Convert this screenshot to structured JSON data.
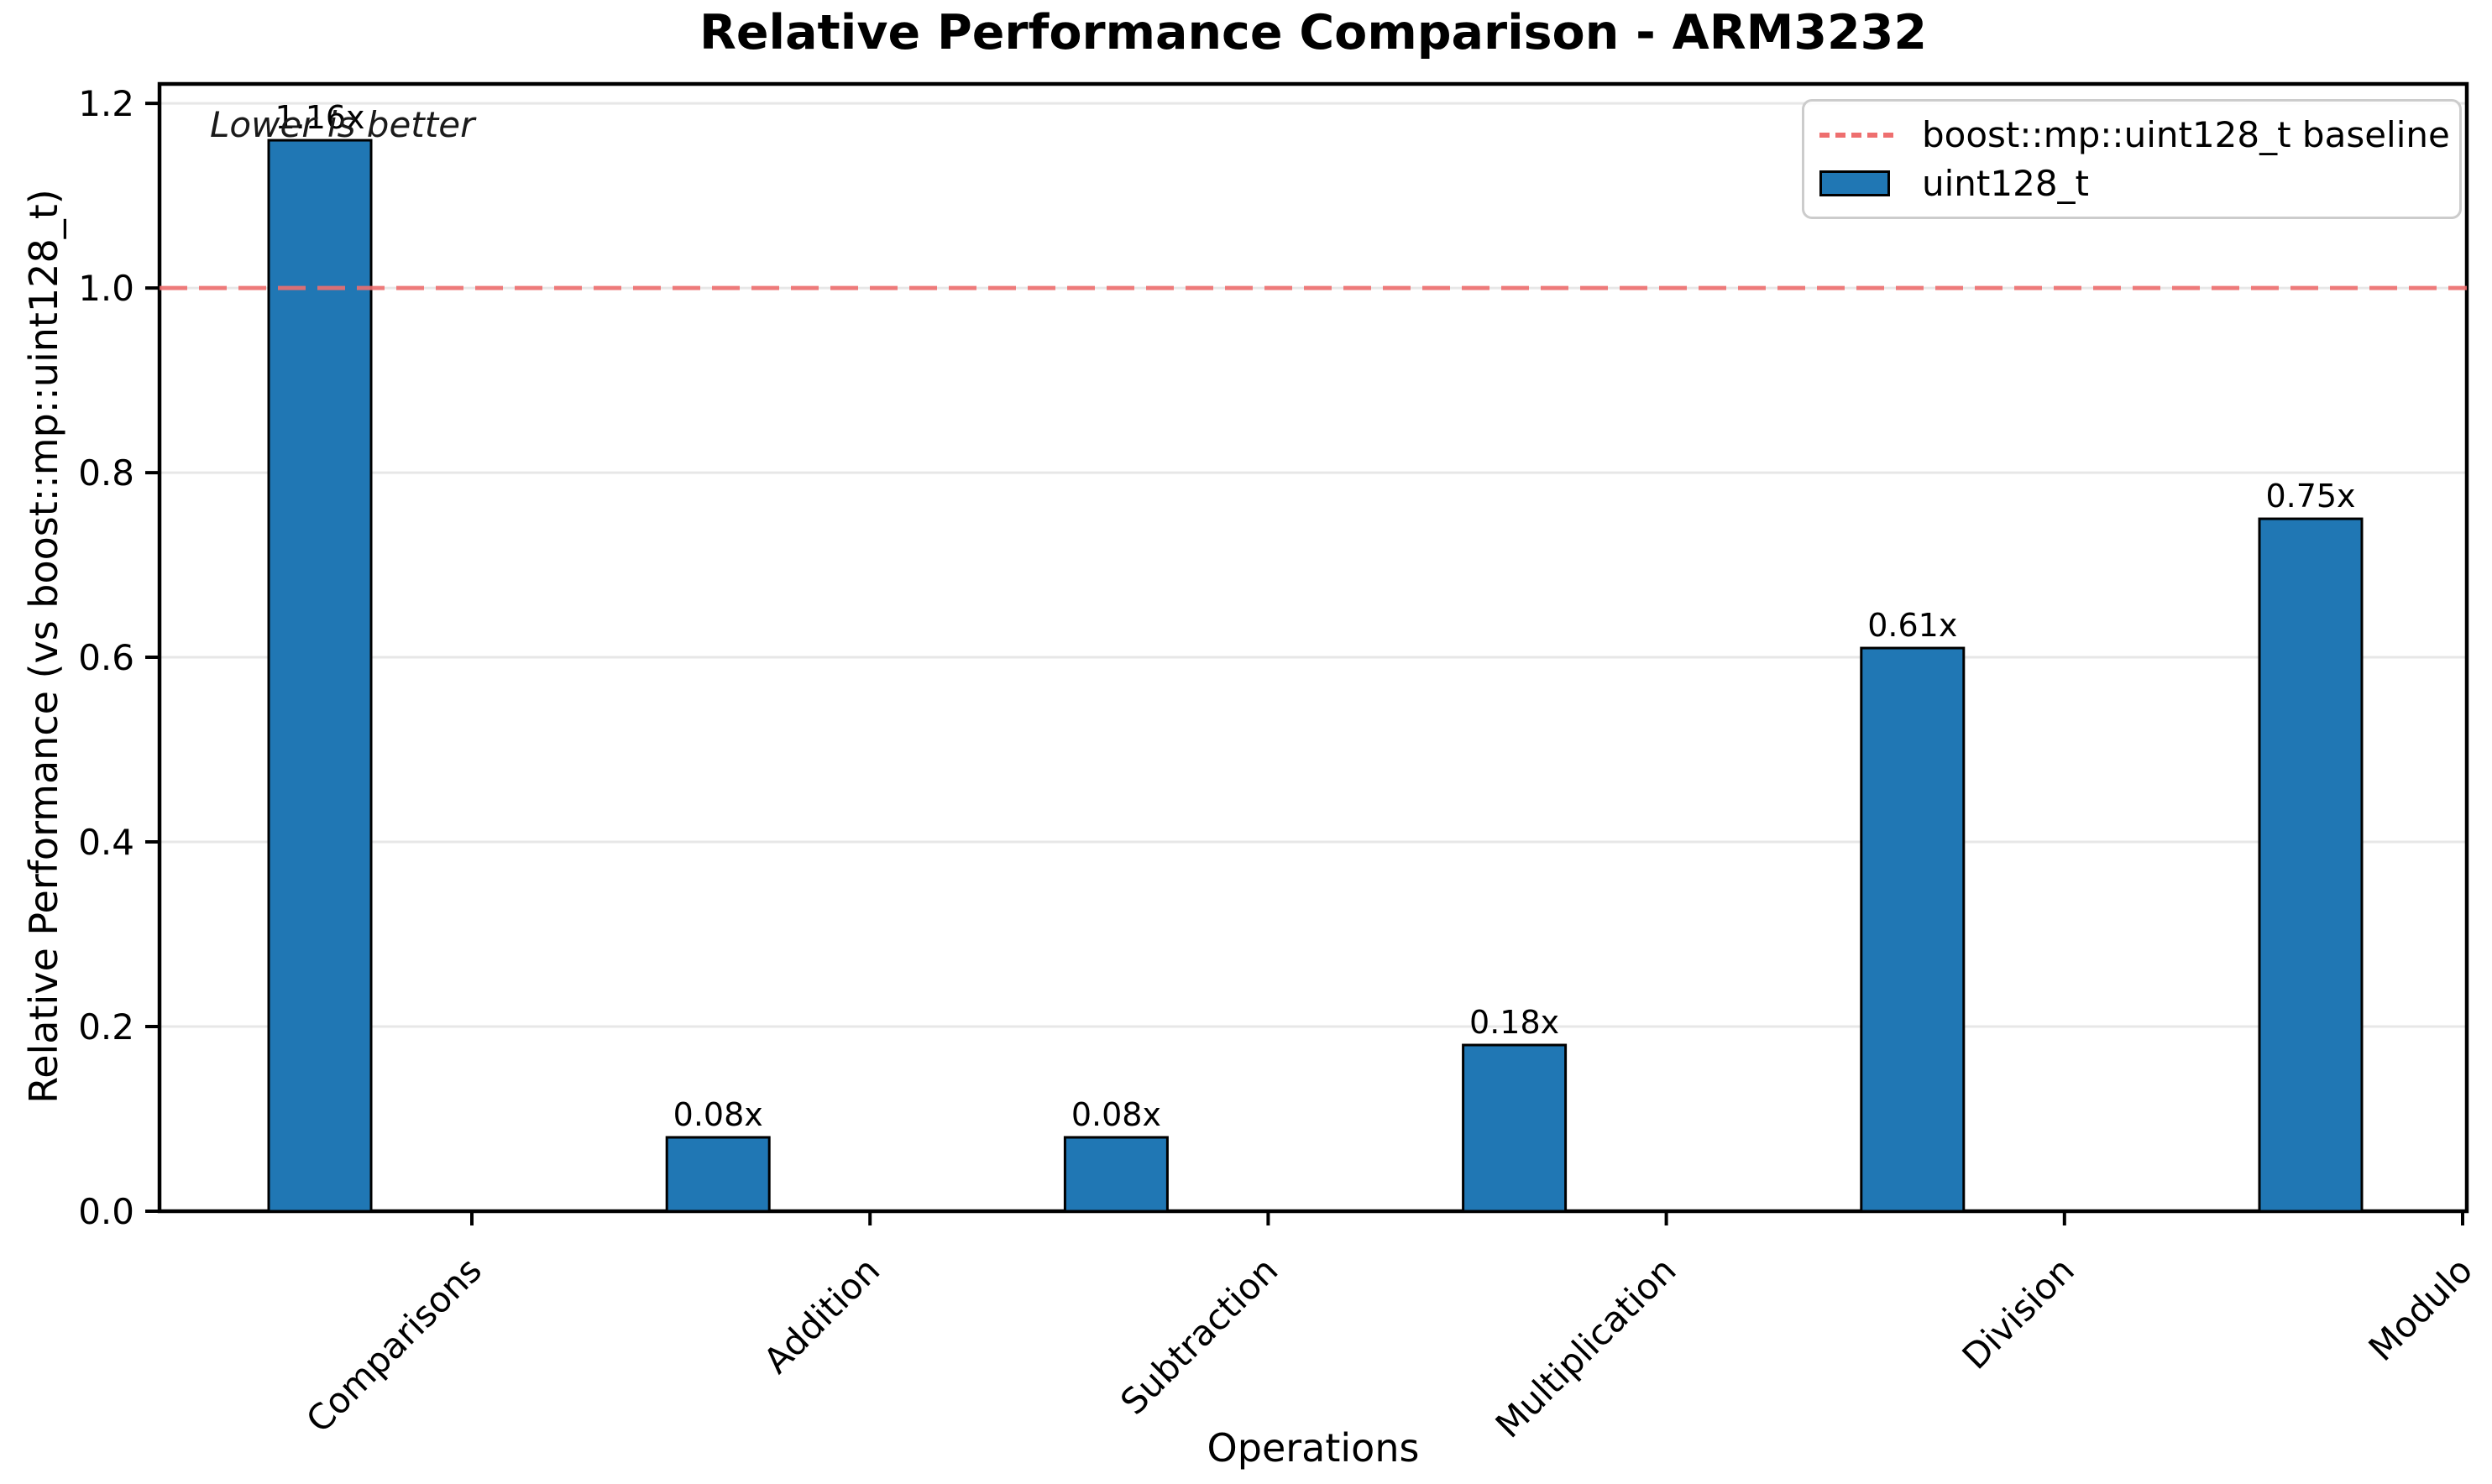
{
  "chart_data": {
    "type": "bar",
    "title": "Relative Performance Comparison - ARM3232",
    "xlabel": "Operations",
    "ylabel": "Relative Performance (vs boost::mp::uint128_t)",
    "categories": [
      "Comparisons",
      "Addition",
      "Subtraction",
      "Multiplication",
      "Division",
      "Modulo"
    ],
    "series": [
      {
        "name": "uint128_t",
        "values": [
          1.16,
          0.08,
          0.08,
          0.18,
          0.61,
          0.75
        ],
        "value_labels": [
          "1.16x",
          "0.08x",
          "0.08x",
          "0.18x",
          "0.61x",
          "0.75x"
        ],
        "color": "#2077b4"
      }
    ],
    "ylim": [
      0,
      1.221
    ],
    "yticks": [
      0.0,
      0.2,
      0.4,
      0.6,
      0.8,
      1.0,
      1.2
    ],
    "ytick_labels": [
      "0.0",
      "0.2",
      "0.4",
      "0.6",
      "0.8",
      "1.0",
      "1.2"
    ],
    "baseline": {
      "value": 1.0,
      "label": "boost::mp::uint128_t baseline",
      "color": "#ee6f6f",
      "style": "dashed"
    },
    "annotation": "Lower is better",
    "grid": "horizontal",
    "grid_color": "#e7e7e7",
    "legend_position": "upper right",
    "legend": {
      "entries": [
        {
          "label": "boost::mp::uint128_t baseline",
          "type": "dashed-line",
          "color": "#ee6f6f"
        },
        {
          "label": "uint128_t",
          "type": "swatch",
          "color": "#2077b4"
        }
      ]
    }
  }
}
